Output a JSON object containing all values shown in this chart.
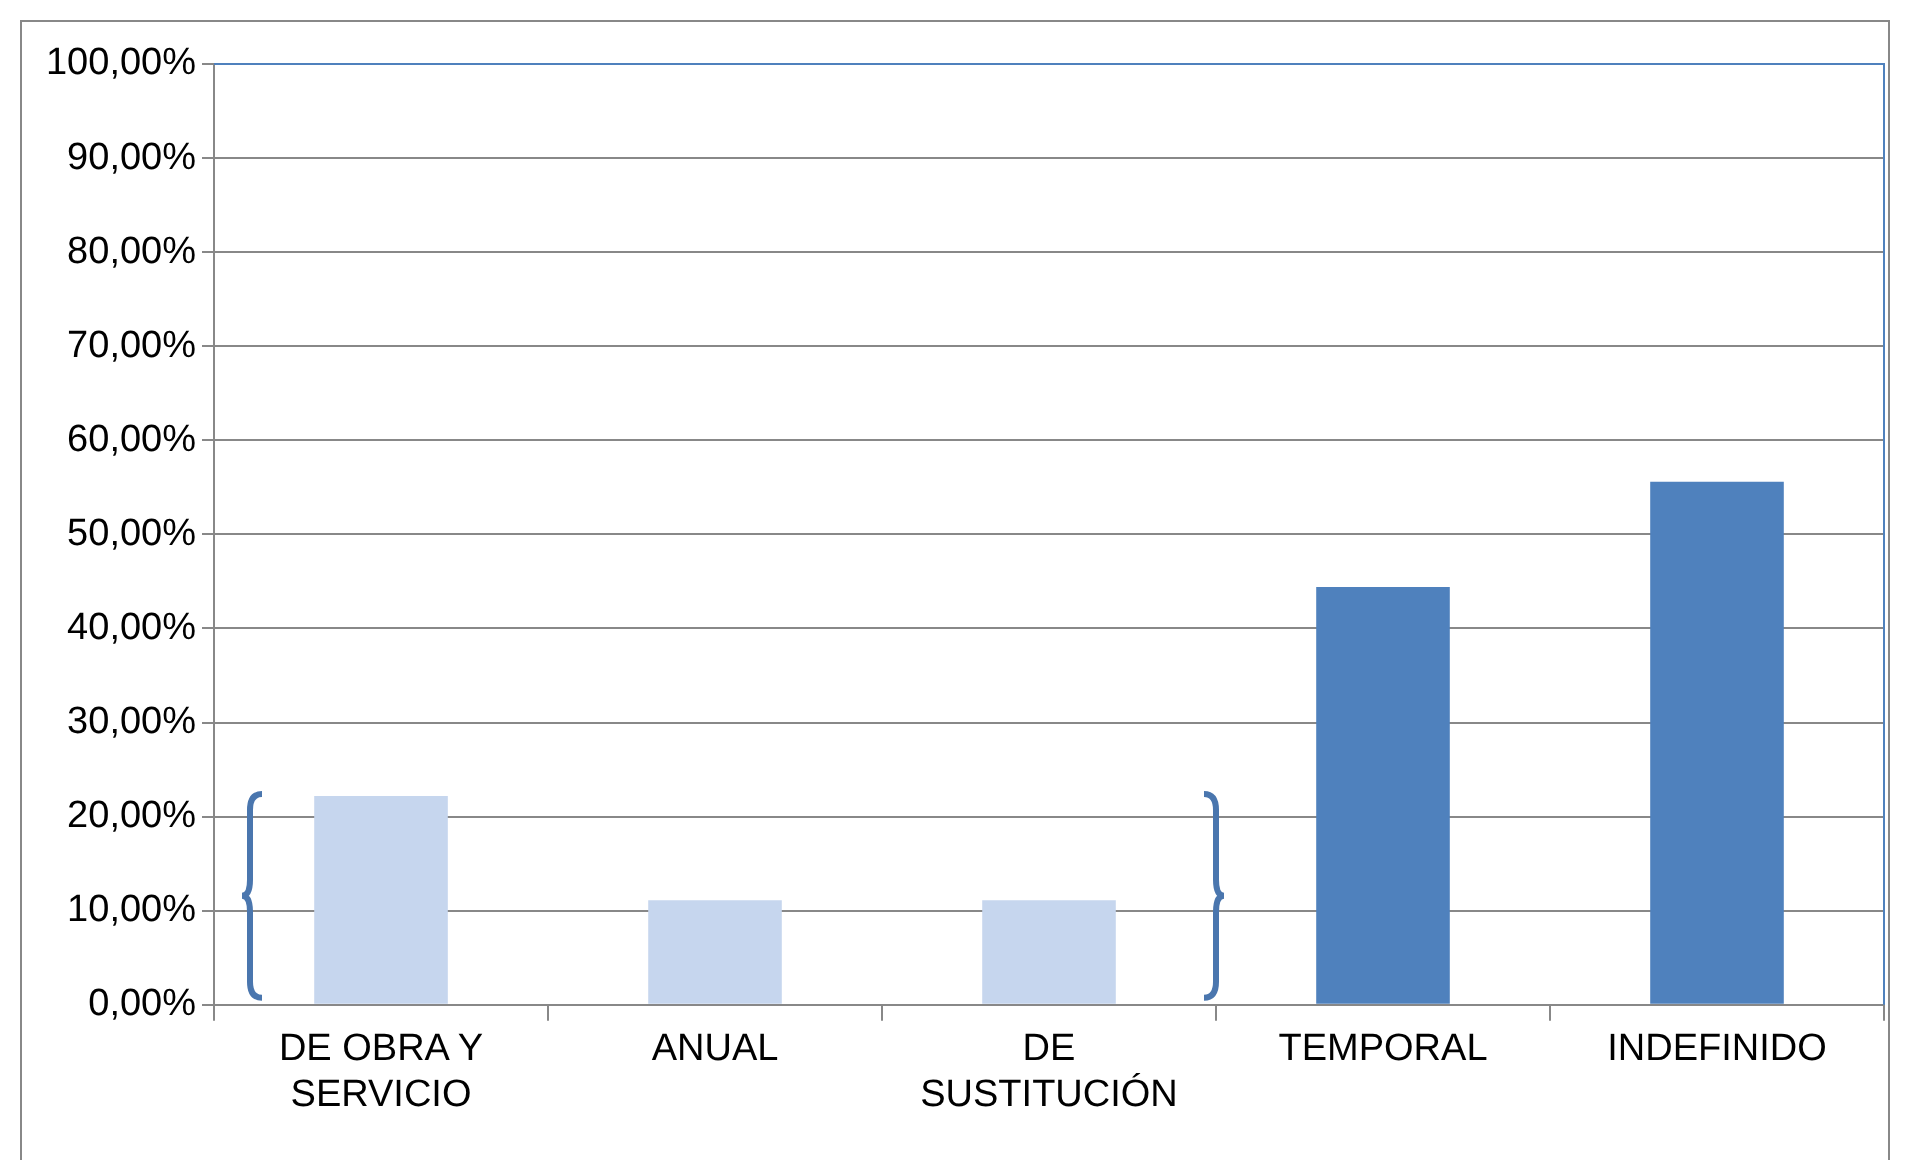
{
  "chart_data": {
    "type": "bar",
    "categories": [
      "DE OBRA Y SERVICIO",
      "ANUAL",
      "DE SUSTITUCIÓN",
      "TEMPORAL",
      "INDEFINIDO"
    ],
    "values": [
      22.2,
      11.1,
      11.1,
      44.4,
      55.6
    ],
    "colors": [
      "#c6d6ee",
      "#c6d6ee",
      "#c6d6ee",
      "#4f81bd",
      "#4f81bd"
    ],
    "ylim": [
      0,
      100
    ],
    "yticks": [
      {
        "value": 0,
        "label": "0,00%"
      },
      {
        "value": 10,
        "label": "10,00%"
      },
      {
        "value": 20,
        "label": "20,00%"
      },
      {
        "value": 30,
        "label": "30,00%"
      },
      {
        "value": 40,
        "label": "40,00%"
      },
      {
        "value": 50,
        "label": "50,00%"
      },
      {
        "value": 60,
        "label": "60,00%"
      },
      {
        "value": 70,
        "label": "70,00%"
      },
      {
        "value": 80,
        "label": "80,00%"
      },
      {
        "value": 90,
        "label": "90,00%"
      },
      {
        "value": 100,
        "label": "100,00%"
      }
    ],
    "grid": "y"
  }
}
